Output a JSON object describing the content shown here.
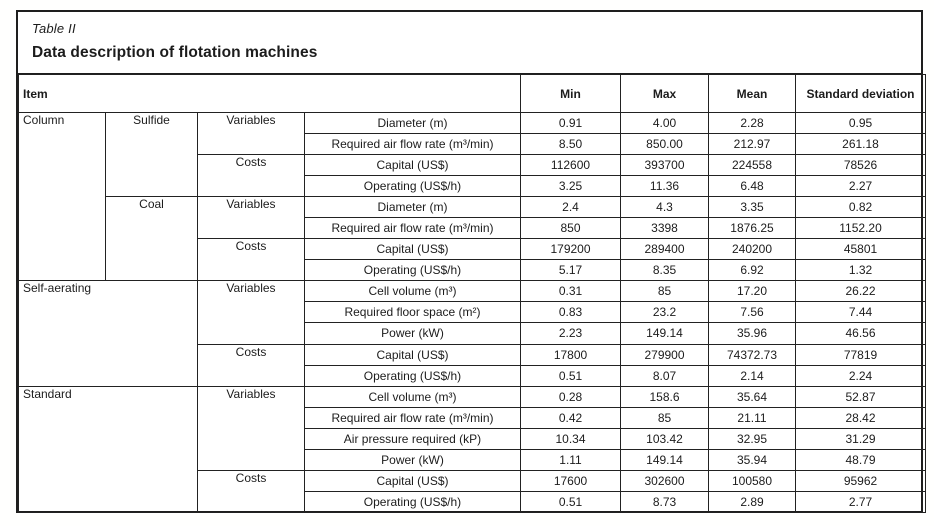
{
  "page": {
    "caption": "Table II",
    "title": "Data description of flotation machines"
  },
  "headers": {
    "item": "Item",
    "min": "Min",
    "max": "Max",
    "mean": "Mean",
    "std": "Standard deviation"
  },
  "rows": [
    {
      "group": "Column",
      "group_rowspan": 8,
      "group_colspan": 1,
      "subgroup": "Sulfide",
      "subgroup_rowspan": 4,
      "category": "Variables",
      "category_rowspan": 2,
      "item": "Diameter (m)",
      "min": "0.91",
      "max": "4.00",
      "mean": "2.28",
      "std": "0.95"
    },
    {
      "item": "Required air flow rate (m³/min)",
      "min": "8.50",
      "max": "850.00",
      "mean": "212.97",
      "std": "261.18"
    },
    {
      "category": "Costs",
      "category_rowspan": 2,
      "item": "Capital (US$)",
      "min": "112600",
      "max": "393700",
      "mean": "224558",
      "std": "78526"
    },
    {
      "item": "Operating (US$/h)",
      "min": "3.25",
      "max": "11.36",
      "mean": "6.48",
      "std": "2.27"
    },
    {
      "subgroup": "Coal",
      "subgroup_rowspan": 4,
      "category": "Variables",
      "category_rowspan": 2,
      "item": "Diameter (m)",
      "min": "2.4",
      "max": "4.3",
      "mean": "3.35",
      "std": "0.82"
    },
    {
      "item": "Required air flow rate (m³/min)",
      "min": "850",
      "max": "3398",
      "mean": "1876.25",
      "std": "1152.20"
    },
    {
      "category": "Costs",
      "category_rowspan": 2,
      "item": "Capital (US$)",
      "min": "179200",
      "max": "289400",
      "mean": "240200",
      "std": "45801"
    },
    {
      "item": "Operating (US$/h)",
      "min": "5.17",
      "max": "8.35",
      "mean": "6.92",
      "std": "1.32"
    },
    {
      "group": "Self-aerating",
      "group_rowspan": 5,
      "group_colspan": 2,
      "category": "Variables",
      "category_rowspan": 3,
      "item": "Cell volume (m³)",
      "min": "0.31",
      "max": "85",
      "mean": "17.20",
      "std": "26.22"
    },
    {
      "item": "Required floor space (m²)",
      "min": "0.83",
      "max": "23.2",
      "mean": "7.56",
      "std": "7.44"
    },
    {
      "item": "Power (kW)",
      "min": "2.23",
      "max": "149.14",
      "mean": "35.96",
      "std": "46.56"
    },
    {
      "category": "Costs",
      "category_rowspan": 2,
      "item": "Capital (US$)",
      "min": "17800",
      "max": "279900",
      "mean": "74372.73",
      "std": "77819"
    },
    {
      "item": "Operating (US$/h)",
      "min": "0.51",
      "max": "8.07",
      "mean": "2.14",
      "std": "2.24"
    },
    {
      "group": "Standard",
      "group_rowspan": 6,
      "group_colspan": 2,
      "category": "Variables",
      "category_rowspan": 4,
      "item": "Cell volume (m³)",
      "min": "0.28",
      "max": "158.6",
      "mean": "35.64",
      "std": "52.87"
    },
    {
      "item": "Required air flow rate (m³/min)",
      "min": "0.42",
      "max": "85",
      "mean": "21.11",
      "std": "28.42"
    },
    {
      "item": "Air pressure required (kP)",
      "min": "10.34",
      "max": "103.42",
      "mean": "32.95",
      "std": "31.29"
    },
    {
      "item": "Power (kW)",
      "min": "1.11",
      "max": "149.14",
      "mean": "35.94",
      "std": "48.79"
    },
    {
      "category": "Costs",
      "category_rowspan": 2,
      "item": "Capital (US$)",
      "min": "17600",
      "max": "302600",
      "mean": "100580",
      "std": "95962"
    },
    {
      "item": "Operating (US$/h)",
      "min": "0.51",
      "max": "8.73",
      "mean": "2.89",
      "std": "2.77"
    }
  ]
}
